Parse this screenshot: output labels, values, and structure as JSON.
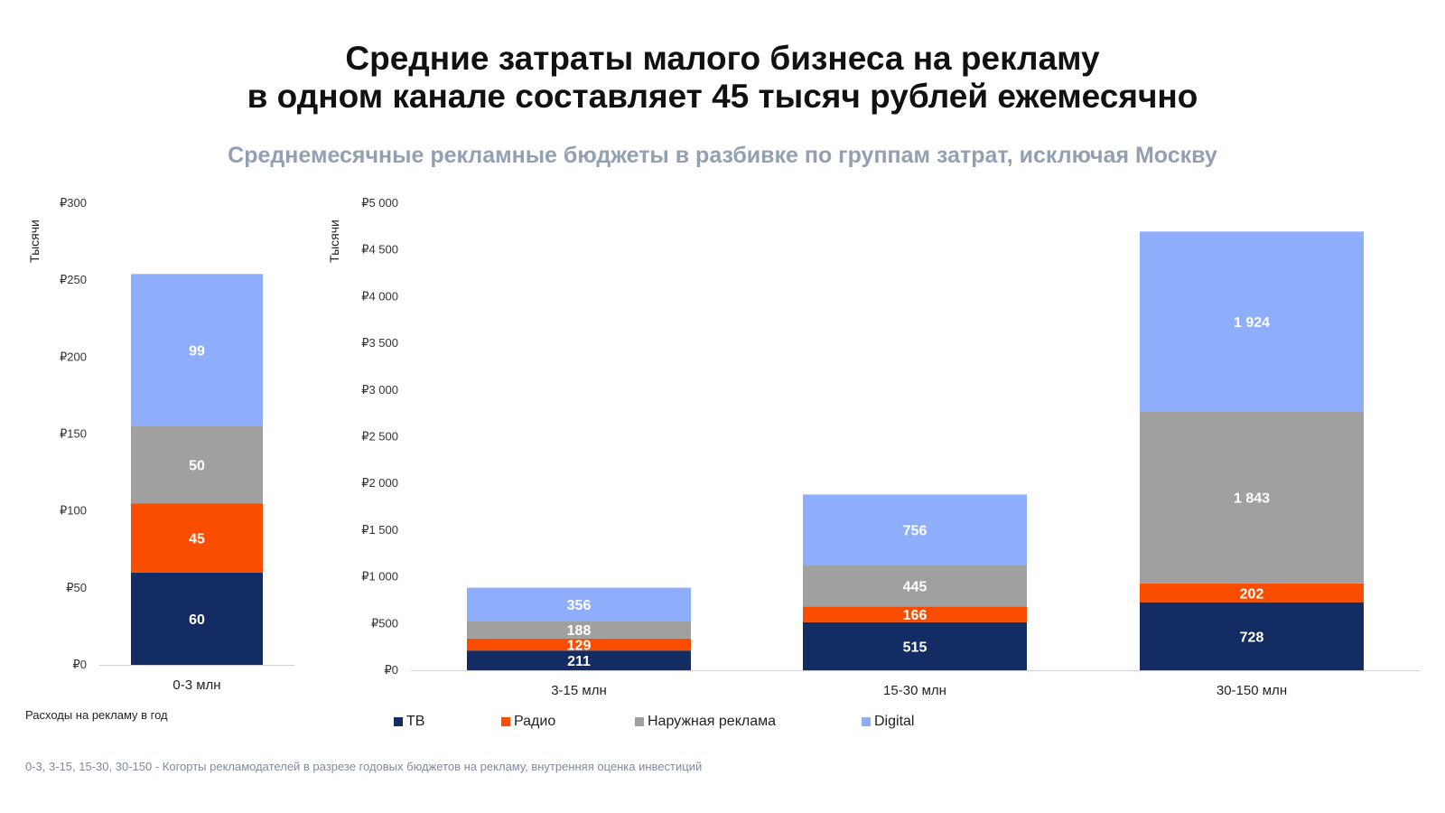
{
  "title_line1": "Средние затраты малого бизнеса на рекламу",
  "title_line2": "в одном канале составляет 45 тысяч рублей ежемесячно",
  "subtitle": "Среднемесячные рекламные бюджеты в разбивке по группам затрат, исключая Москву",
  "spend_label": "Расходы на рекламу в год",
  "footnote": "0-3, 3-15, 15-30, 30-150 - Когорты рекламодателей в разрезе годовых бюджетов на рекламу, внутренняя оценка инвестиций",
  "colors": {
    "ТВ": "#132c63",
    "Радио": "#fa4d00",
    "Наружная реклама": "#a0a0a0",
    "Digital": "#8eadfa"
  },
  "legend": [
    {
      "name": "ТВ",
      "color": "#132c63"
    },
    {
      "name": "Радио",
      "color": "#fa4d00"
    },
    {
      "name": "Наружная реклама",
      "color": "#a0a0a0"
    },
    {
      "name": "Digital",
      "color": "#8eadfa"
    }
  ],
  "chart_data": [
    {
      "type": "bar",
      "stacked": true,
      "ylabel": "Тысячи",
      "ylim": [
        0,
        300
      ],
      "yticks": [
        "₽0",
        "₽50",
        "₽100",
        "₽150",
        "₽200",
        "₽250",
        "₽300"
      ],
      "categories": [
        "0-3 млн"
      ],
      "series": [
        {
          "name": "ТВ",
          "values": [
            60
          ],
          "labels": [
            "60"
          ]
        },
        {
          "name": "Радио",
          "values": [
            45
          ],
          "labels": [
            "45"
          ]
        },
        {
          "name": "Наружная реклама",
          "values": [
            50
          ],
          "labels": [
            "50"
          ]
        },
        {
          "name": "Digital",
          "values": [
            99
          ],
          "labels": [
            "99"
          ]
        }
      ]
    },
    {
      "type": "bar",
      "stacked": true,
      "ylabel": "Тысячи",
      "ylim": [
        0,
        5000
      ],
      "yticks": [
        "₽0",
        "₽500",
        "₽1 000",
        "₽1 500",
        "₽2 000",
        "₽2 500",
        "₽3 000",
        "₽3 500",
        "₽4 000",
        "₽4 500",
        "₽5 000"
      ],
      "categories": [
        "3-15 млн",
        "15-30 млн",
        "30-150 млн"
      ],
      "series": [
        {
          "name": "ТВ",
          "values": [
            211,
            515,
            728
          ],
          "labels": [
            "211",
            "515",
            "728"
          ]
        },
        {
          "name": "Радио",
          "values": [
            129,
            166,
            202
          ],
          "labels": [
            "129",
            "166",
            "202"
          ]
        },
        {
          "name": "Наружная реклама",
          "values": [
            188,
            445,
            1843
          ],
          "labels": [
            "188",
            "445",
            "1 843"
          ]
        },
        {
          "name": "Digital",
          "values": [
            356,
            756,
            1924
          ],
          "labels": [
            "356",
            "756",
            "1 924"
          ]
        }
      ]
    }
  ]
}
